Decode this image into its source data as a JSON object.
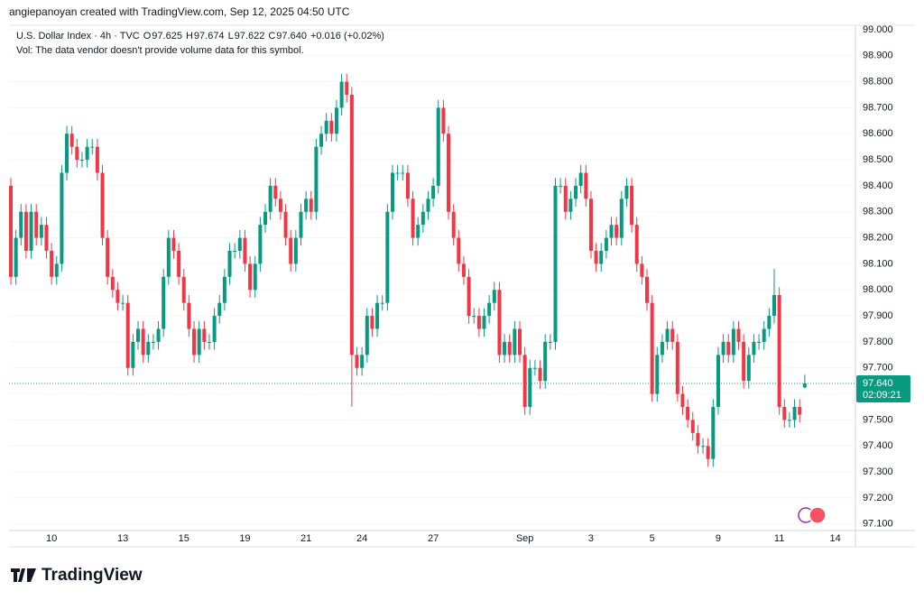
{
  "chart_data": {
    "type": "candlestick",
    "attribution": "angiepanoyan created with TradingView.com, Sep 12, 2025 04:50 UTC",
    "symbol": "U.S. Dollar Index · 4h · TVC",
    "ohlc_legend": [
      {
        "label": "O",
        "value": "97.625"
      },
      {
        "label": "H",
        "value": "97.674"
      },
      {
        "label": "L",
        "value": "97.622"
      },
      {
        "label": "C",
        "value": "97.640"
      }
    ],
    "change": "+0.016 (+0.02%)",
    "volume_note": "Vol: The data vendor doesn't provide volume data for this symbol.",
    "last_price": {
      "value": 97.64,
      "label": "97.640"
    },
    "countdown": "02:09:21",
    "logo": "TradingView",
    "up_color": "#089981",
    "down_color": "#f23645",
    "categories": [
      null,
      null,
      null,
      null,
      null,
      null,
      null,
      null,
      "10",
      null,
      null,
      null,
      null,
      null,
      null,
      null,
      null,
      null,
      null,
      null,
      null,
      null,
      "13",
      null,
      null,
      null,
      null,
      null,
      null,
      null,
      null,
      null,
      null,
      null,
      "15",
      null,
      null,
      null,
      null,
      null,
      null,
      null,
      null,
      null,
      null,
      null,
      "19",
      null,
      null,
      null,
      null,
      null,
      null,
      null,
      null,
      null,
      null,
      null,
      "21",
      null,
      null,
      null,
      null,
      null,
      null,
      null,
      null,
      null,
      null,
      "24",
      null,
      null,
      null,
      null,
      null,
      null,
      null,
      null,
      null,
      null,
      null,
      null,
      null,
      "27",
      null,
      null,
      null,
      null,
      null,
      null,
      null,
      null,
      null,
      null,
      null,
      null,
      null,
      null,
      null,
      null,
      null,
      "Sep",
      null,
      null,
      null,
      null,
      null,
      null,
      null,
      null,
      null,
      null,
      null,
      null,
      "3",
      null,
      null,
      null,
      null,
      null,
      null,
      null,
      null,
      null,
      null,
      null,
      "5",
      null,
      null,
      null,
      null,
      null,
      null,
      null,
      null,
      null,
      null,
      null,
      null,
      "9",
      null,
      null,
      null,
      null,
      null,
      null,
      null,
      null,
      null,
      null,
      null,
      "11",
      null,
      null,
      null,
      null,
      null,
      null,
      null,
      null,
      null,
      null,
      "14",
      null
    ],
    "open": [
      98.4,
      98.05,
      98.2,
      98.3,
      98.15,
      98.3,
      98.2,
      98.25,
      98.15,
      98.05,
      98.1,
      98.45,
      98.6,
      98.55,
      98.5,
      98.5,
      98.55,
      98.55,
      98.45,
      98.2,
      98.05,
      98.0,
      97.95,
      97.95,
      97.7,
      97.8,
      97.85,
      97.75,
      97.8,
      97.8,
      97.85,
      98.05,
      98.2,
      98.15,
      98.05,
      97.95,
      97.85,
      97.75,
      97.85,
      97.8,
      97.8,
      97.9,
      97.95,
      98.05,
      98.15,
      98.15,
      98.2,
      98.1,
      98.0,
      98.1,
      98.25,
      98.3,
      98.4,
      98.35,
      98.3,
      98.2,
      98.1,
      98.2,
      98.3,
      98.35,
      98.3,
      98.55,
      98.6,
      98.65,
      98.6,
      98.7,
      98.8,
      98.75,
      97.75,
      97.7,
      97.75,
      97.9,
      97.85,
      97.95,
      97.95,
      98.3,
      98.45,
      98.45,
      98.45,
      98.35,
      98.2,
      98.25,
      98.3,
      98.35,
      98.4,
      98.7,
      98.6,
      98.3,
      98.2,
      98.1,
      98.05,
      97.9,
      97.9,
      97.85,
      97.9,
      97.95,
      98.0,
      97.75,
      97.8,
      97.75,
      97.85,
      97.75,
      97.55,
      97.7,
      97.7,
      97.65,
      97.8,
      97.8,
      98.4,
      98.4,
      98.3,
      98.35,
      98.4,
      98.45,
      98.35,
      98.15,
      98.1,
      98.15,
      98.2,
      98.25,
      98.2,
      98.35,
      98.4,
      98.25,
      98.1,
      98.05,
      97.95,
      97.6,
      97.75,
      97.8,
      97.85,
      97.8,
      97.6,
      97.55,
      97.5,
      97.45,
      97.4,
      97.4,
      97.35,
      97.55,
      97.75,
      97.8,
      97.75,
      97.85,
      97.8,
      97.65,
      97.75,
      97.8,
      97.8,
      97.85,
      97.9,
      97.98,
      97.55,
      97.5,
      97.5,
      97.55,
      97.625,
      null,
      null,
      null,
      null,
      null,
      null,
      null
    ],
    "high": [
      98.43,
      98.23,
      98.33,
      98.33,
      98.33,
      98.33,
      98.28,
      98.28,
      98.18,
      98.13,
      98.48,
      98.63,
      98.63,
      98.58,
      98.53,
      98.58,
      98.58,
      98.58,
      98.48,
      98.23,
      98.08,
      98.03,
      97.98,
      97.98,
      97.83,
      97.88,
      97.88,
      97.83,
      97.83,
      97.88,
      98.08,
      98.23,
      98.23,
      98.18,
      98.08,
      97.98,
      97.88,
      97.88,
      97.88,
      97.83,
      97.93,
      97.98,
      98.08,
      98.18,
      98.18,
      98.23,
      98.23,
      98.13,
      98.13,
      98.28,
      98.33,
      98.43,
      98.43,
      98.38,
      98.33,
      98.23,
      98.23,
      98.33,
      98.38,
      98.38,
      98.58,
      98.63,
      98.68,
      98.68,
      98.73,
      98.83,
      98.83,
      98.78,
      97.78,
      97.78,
      97.93,
      97.93,
      97.98,
      97.98,
      98.33,
      98.48,
      98.48,
      98.48,
      98.48,
      98.38,
      98.28,
      98.33,
      98.38,
      98.43,
      98.73,
      98.73,
      98.63,
      98.33,
      98.23,
      98.13,
      98.08,
      97.93,
      97.93,
      97.93,
      97.98,
      98.03,
      98.03,
      97.83,
      97.83,
      97.88,
      97.88,
      97.78,
      97.73,
      97.73,
      97.73,
      97.83,
      97.83,
      98.43,
      98.43,
      98.43,
      98.38,
      98.43,
      98.48,
      98.48,
      98.38,
      98.18,
      98.18,
      98.23,
      98.28,
      98.28,
      98.38,
      98.43,
      98.43,
      98.28,
      98.13,
      98.08,
      97.98,
      97.78,
      97.83,
      97.88,
      97.88,
      97.83,
      97.63,
      97.58,
      97.53,
      97.48,
      97.43,
      97.43,
      97.58,
      97.78,
      97.83,
      97.83,
      97.88,
      97.88,
      97.83,
      97.78,
      97.83,
      97.83,
      97.88,
      97.93,
      98.08,
      98.01,
      97.58,
      97.53,
      97.58,
      97.58,
      97.674,
      null,
      null,
      null,
      null,
      null,
      null,
      null
    ],
    "low": [
      98.02,
      98.02,
      98.17,
      98.12,
      98.12,
      98.17,
      98.17,
      98.12,
      98.02,
      98.02,
      98.07,
      98.42,
      98.52,
      98.47,
      98.47,
      98.47,
      98.52,
      98.42,
      98.17,
      98.02,
      97.97,
      97.92,
      97.92,
      97.67,
      97.67,
      97.77,
      97.72,
      97.72,
      97.77,
      97.77,
      97.82,
      98.02,
      98.12,
      98.02,
      97.92,
      97.82,
      97.72,
      97.72,
      97.77,
      97.77,
      97.77,
      97.87,
      97.92,
      98.02,
      98.12,
      98.12,
      98.07,
      97.97,
      97.97,
      98.07,
      98.22,
      98.27,
      98.32,
      98.27,
      98.17,
      98.07,
      98.07,
      98.17,
      98.27,
      98.27,
      98.27,
      98.52,
      98.57,
      98.57,
      98.57,
      98.67,
      98.72,
      97.55,
      97.67,
      97.67,
      97.72,
      97.82,
      97.82,
      97.92,
      97.92,
      98.27,
      98.42,
      98.42,
      98.32,
      98.17,
      98.17,
      98.22,
      98.27,
      98.32,
      98.37,
      98.57,
      98.27,
      98.17,
      98.07,
      98.02,
      97.87,
      97.87,
      97.82,
      97.82,
      97.87,
      97.92,
      97.72,
      97.72,
      97.72,
      97.72,
      97.72,
      97.52,
      97.52,
      97.67,
      97.62,
      97.62,
      97.77,
      97.77,
      98.37,
      98.27,
      98.27,
      98.32,
      98.37,
      98.32,
      98.12,
      98.07,
      98.07,
      98.12,
      98.17,
      98.17,
      98.17,
      98.32,
      98.22,
      98.07,
      98.02,
      97.92,
      97.57,
      97.57,
      97.72,
      97.77,
      97.77,
      97.57,
      97.52,
      97.47,
      97.42,
      97.37,
      97.37,
      97.32,
      97.32,
      97.52,
      97.72,
      97.72,
      97.72,
      97.77,
      97.62,
      97.62,
      97.72,
      97.77,
      97.77,
      97.82,
      97.87,
      97.52,
      97.47,
      97.47,
      97.47,
      97.49,
      97.622,
      null,
      null,
      null,
      null,
      null,
      null,
      null
    ],
    "close": [
      98.05,
      98.2,
      98.3,
      98.15,
      98.3,
      98.2,
      98.25,
      98.15,
      98.05,
      98.1,
      98.45,
      98.6,
      98.55,
      98.5,
      98.5,
      98.55,
      98.55,
      98.45,
      98.2,
      98.05,
      98.0,
      97.95,
      97.95,
      97.7,
      97.8,
      97.85,
      97.75,
      97.8,
      97.8,
      97.85,
      98.05,
      98.2,
      98.15,
      98.05,
      97.95,
      97.85,
      97.75,
      97.85,
      97.8,
      97.8,
      97.9,
      97.95,
      98.05,
      98.15,
      98.15,
      98.2,
      98.1,
      98.0,
      98.1,
      98.25,
      98.3,
      98.4,
      98.35,
      98.3,
      98.2,
      98.1,
      98.2,
      98.3,
      98.35,
      98.3,
      98.55,
      98.6,
      98.65,
      98.6,
      98.7,
      98.8,
      98.75,
      97.75,
      97.7,
      97.75,
      97.9,
      97.85,
      97.95,
      97.95,
      98.3,
      98.45,
      98.45,
      98.45,
      98.35,
      98.2,
      98.25,
      98.3,
      98.35,
      98.4,
      98.7,
      98.6,
      98.3,
      98.2,
      98.1,
      98.05,
      97.9,
      97.9,
      97.85,
      97.9,
      97.95,
      98.0,
      97.75,
      97.8,
      97.75,
      97.85,
      97.75,
      97.55,
      97.7,
      97.7,
      97.65,
      97.8,
      97.8,
      98.4,
      98.4,
      98.3,
      98.35,
      98.4,
      98.45,
      98.35,
      98.15,
      98.1,
      98.15,
      98.2,
      98.25,
      98.2,
      98.35,
      98.4,
      98.25,
      98.1,
      98.05,
      97.95,
      97.6,
      97.75,
      97.8,
      97.85,
      97.8,
      97.6,
      97.55,
      97.5,
      97.45,
      97.4,
      97.4,
      97.35,
      97.55,
      97.75,
      97.8,
      97.75,
      97.85,
      97.8,
      97.65,
      97.75,
      97.8,
      97.8,
      97.85,
      97.9,
      97.98,
      97.55,
      97.5,
      97.5,
      97.55,
      97.52,
      97.64,
      null,
      null,
      null,
      null,
      null,
      null,
      null
    ],
    "ylim": [
      97.068,
      99.017
    ],
    "yticks": [
      {
        "value": 99.0,
        "label": "99.000"
      },
      {
        "value": 98.9,
        "label": "98.900"
      },
      {
        "value": 98.8,
        "label": "98.800"
      },
      {
        "value": 98.7,
        "label": "98.700"
      },
      {
        "value": 98.6,
        "label": "98.600"
      },
      {
        "value": 98.5,
        "label": "98.500"
      },
      {
        "value": 98.4,
        "label": "98.400"
      },
      {
        "value": 98.3,
        "label": "98.300"
      },
      {
        "value": 98.2,
        "label": "98.200"
      },
      {
        "value": 98.1,
        "label": "98.100"
      },
      {
        "value": 98.0,
        "label": "98.000"
      },
      {
        "value": 97.9,
        "label": "97.900"
      },
      {
        "value": 97.8,
        "label": "97.800"
      },
      {
        "value": 97.7,
        "label": "97.700"
      },
      {
        "value": 97.6,
        "label": "97.600"
      },
      {
        "value": 97.5,
        "label": "97.500"
      },
      {
        "value": 97.4,
        "label": "97.400"
      },
      {
        "value": 97.3,
        "label": "97.300"
      },
      {
        "value": 97.2,
        "label": "97.200"
      },
      {
        "value": 97.1,
        "label": "97.100"
      }
    ]
  }
}
